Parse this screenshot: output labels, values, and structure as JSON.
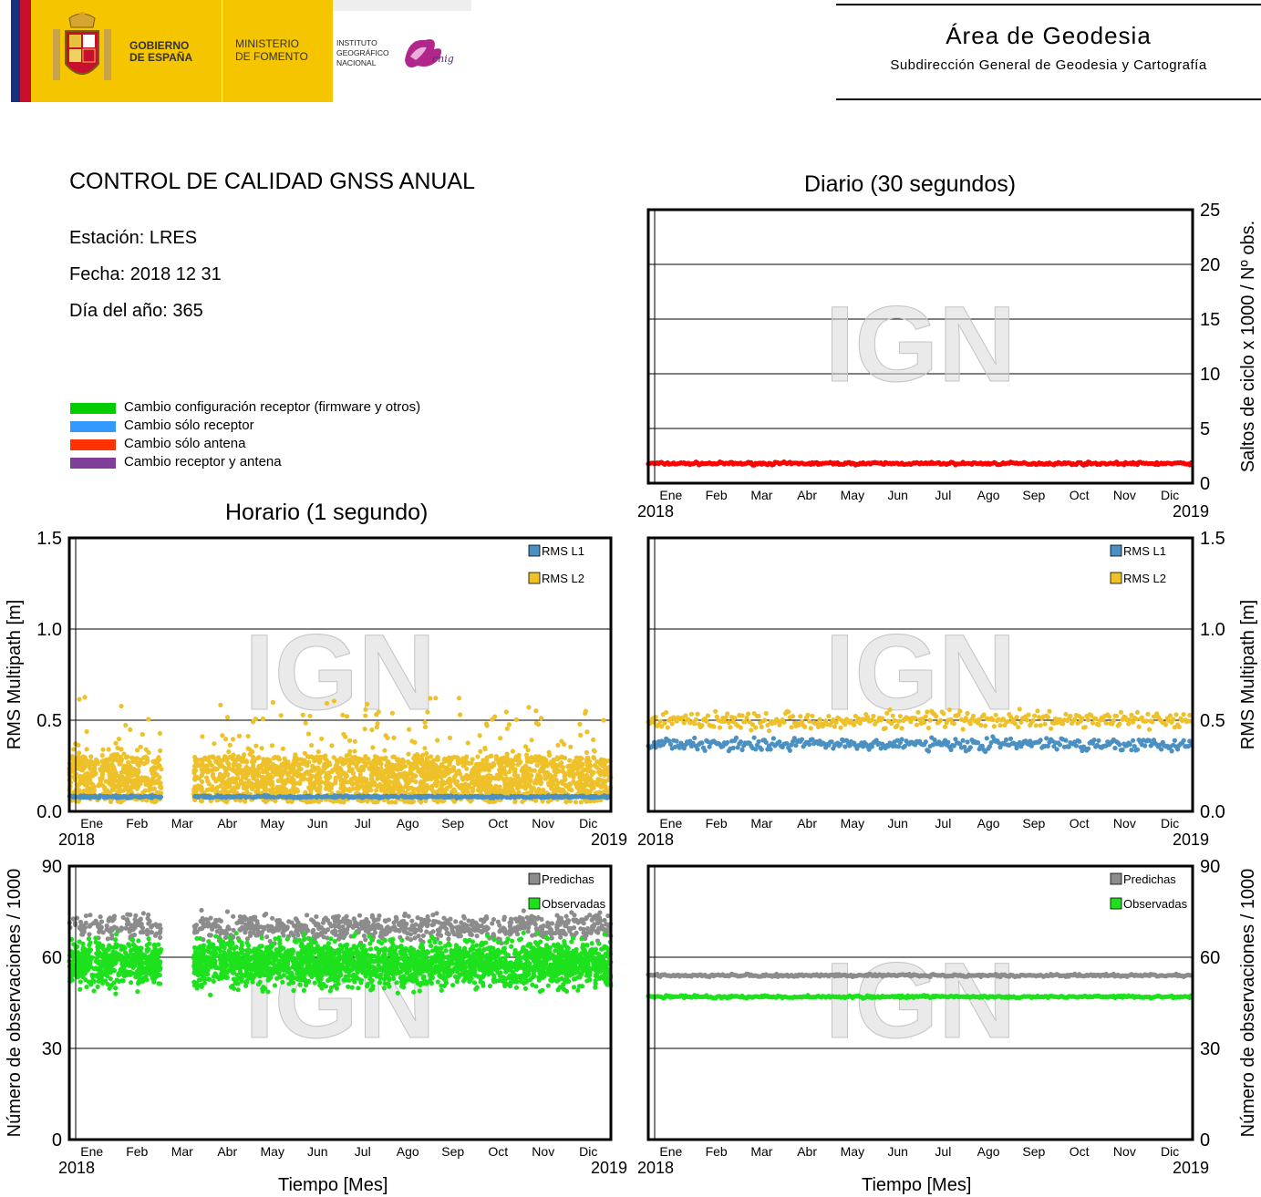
{
  "header": {
    "gov_line1": "GOBIERNO",
    "gov_line2": "DE ESPAÑA",
    "min_line1": "MINISTERIO",
    "min_line2": "DE FOMENTO",
    "inst_line1": "INSTITUTO",
    "inst_line2": "GEOGRÁFICO",
    "inst_line3": "NACIONAL",
    "cnig": "cnig",
    "area_title": "Área de Geodesia",
    "area_subtitle": "Subdirección General de Geodesia y Cartografía"
  },
  "info": {
    "title": "CONTROL DE CALIDAD GNSS ANUAL",
    "station": "Estación: LRES",
    "date": "Fecha: 2018 12 31",
    "doy": "Día del año: 365"
  },
  "legend": [
    {
      "label": "Cambio configuración receptor (firmware y otros)",
      "color": "#00cc00"
    },
    {
      "label": "Cambio sólo receptor",
      "color": "#3399ff"
    },
    {
      "label": "Cambio sólo antena",
      "color": "#ff3300"
    },
    {
      "label": "Cambio receptor y antena",
      "color": "#7f3f98"
    }
  ],
  "titles": {
    "daily": "Diario (30 segundos)",
    "hourly": "Horario (1 segundo)",
    "xlabel": "Tiempo [Mes]"
  },
  "watermark": "IGN",
  "months": [
    "Ene",
    "Feb",
    "Mar",
    "Abr",
    "May",
    "Jun",
    "Jul",
    "Ago",
    "Sep",
    "Oct",
    "Nov",
    "Dic"
  ],
  "year_start": "2018",
  "year_end": "2019",
  "colors": {
    "l1": "#4a90c2",
    "l2": "#eec12a",
    "pred": "#8c8c8c",
    "obs": "#1ee11e",
    "slips": "#ff0000"
  },
  "chart_data": [
    {
      "id": "daily-cycle-slips",
      "type": "scatter",
      "title": "Diario (30 segundos)",
      "ylabel": "Saltos de ciclo x 1000 / Nº obs.",
      "ylim": [
        0,
        25
      ],
      "yticks": [
        "0",
        "5",
        "10",
        "15",
        "20",
        "25"
      ],
      "xlim": [
        "2018-01-01",
        "2019-01-01"
      ],
      "x_unit": "date",
      "series": [
        {
          "color": "#ff0000",
          "typical_value": 1.8,
          "range": [
            1.4,
            2.2
          ]
        }
      ]
    },
    {
      "id": "hourly-multipath",
      "type": "scatter",
      "title": "Horario (1 segundo)",
      "ylabel": "RMS Multipath [m]",
      "ylim": [
        0,
        1.5
      ],
      "yticks": [
        "0.0",
        "0.5",
        "1.0",
        "1.5"
      ],
      "xlim": [
        "2018-01-01",
        "2019-01-01"
      ],
      "series": [
        {
          "name": "RMS L1",
          "color": "#4a90c2",
          "typical_value": 0.08
        },
        {
          "name": "RMS L2",
          "color": "#eec12a",
          "typical_range": [
            0.05,
            0.3
          ],
          "max": 0.67
        }
      ],
      "data_gap": [
        "2018-03-05",
        "2018-03-26"
      ]
    },
    {
      "id": "daily-multipath",
      "type": "scatter",
      "ylabel": "RMS Multipath [m]",
      "ylim": [
        0,
        1.5
      ],
      "yticks": [
        "0.0",
        "0.5",
        "1.0",
        "1.5"
      ],
      "xlim": [
        "2018-01-01",
        "2019-01-01"
      ],
      "series": [
        {
          "name": "RMS L1",
          "color": "#4a90c2",
          "typical_value": 0.37,
          "range": [
            0.29,
            0.5
          ]
        },
        {
          "name": "RMS L2",
          "color": "#eec12a",
          "typical_value": 0.5,
          "range": [
            0.41,
            0.73
          ]
        }
      ]
    },
    {
      "id": "hourly-observations",
      "type": "scatter",
      "ylabel": "Número de observaciones / 1000",
      "xlabel": "Tiempo [Mes]",
      "ylim": [
        0,
        90
      ],
      "yticks": [
        "0",
        "30",
        "60",
        "90"
      ],
      "xlim": [
        "2018-01-01",
        "2019-01-01"
      ],
      "series": [
        {
          "name": "Predichas",
          "color": "#8c8c8c",
          "typical_range": [
            66,
            80
          ]
        },
        {
          "name": "Observadas",
          "color": "#1ee11e",
          "typical_range": [
            45,
            72
          ],
          "min": 36
        }
      ],
      "data_gap": [
        "2018-03-05",
        "2018-03-26"
      ]
    },
    {
      "id": "daily-observations",
      "type": "scatter",
      "ylabel": "Número de observaciones / 1000",
      "xlabel": "Tiempo [Mes]",
      "ylim": [
        0,
        90
      ],
      "yticks": [
        "0",
        "30",
        "60",
        "90"
      ],
      "xlim": [
        "2018-01-01",
        "2019-01-01"
      ],
      "series": [
        {
          "name": "Predichas",
          "color": "#8c8c8c",
          "typical_value": 54,
          "range": [
            53,
            55.5
          ]
        },
        {
          "name": "Observadas",
          "color": "#1ee11e",
          "typical_value": 47,
          "range": [
            45.5,
            48.5
          ]
        }
      ]
    }
  ]
}
